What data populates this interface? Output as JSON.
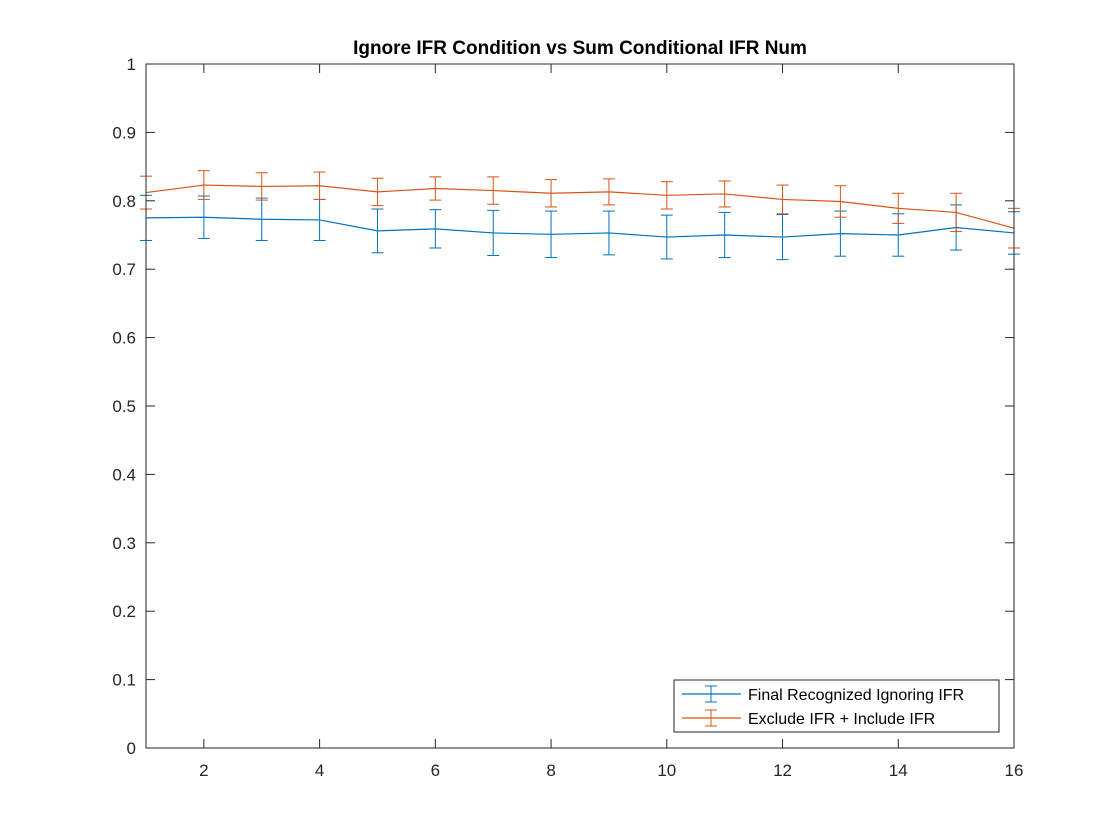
{
  "chart_data": {
    "type": "line",
    "title": "Ignore IFR Condition vs Sum Conditional IFR Num",
    "xlabel": "",
    "ylabel": "",
    "xlim": [
      1,
      16
    ],
    "ylim": [
      0,
      1
    ],
    "xticks": [
      2,
      4,
      6,
      8,
      10,
      12,
      14,
      16
    ],
    "yticks": [
      0,
      0.1,
      0.2,
      0.3,
      0.4,
      0.5,
      0.6,
      0.7,
      0.8,
      0.9,
      1
    ],
    "ytick_labels": [
      "0",
      "0.1",
      "0.2",
      "0.3",
      "0.4",
      "0.5",
      "0.6",
      "0.7",
      "0.8",
      "0.9",
      "1"
    ],
    "grid": false,
    "legend_position": "bottom-right",
    "x": [
      1,
      2,
      3,
      4,
      5,
      6,
      7,
      8,
      9,
      10,
      11,
      12,
      13,
      14,
      15,
      16
    ],
    "series": [
      {
        "name": "Final Recognized Ignoring IFR",
        "color": "#0072BD",
        "values": [
          0.775,
          0.776,
          0.773,
          0.772,
          0.756,
          0.759,
          0.753,
          0.751,
          0.753,
          0.747,
          0.75,
          0.747,
          0.752,
          0.75,
          0.761,
          0.753
        ],
        "errors": [
          0.033,
          0.031,
          0.031,
          0.03,
          0.032,
          0.028,
          0.033,
          0.034,
          0.032,
          0.032,
          0.033,
          0.033,
          0.033,
          0.031,
          0.033,
          0.031
        ]
      },
      {
        "name": "Exclude IFR + Include IFR",
        "color": "#D95319",
        "values": [
          0.812,
          0.823,
          0.821,
          0.822,
          0.813,
          0.818,
          0.815,
          0.811,
          0.813,
          0.808,
          0.81,
          0.802,
          0.799,
          0.789,
          0.783,
          0.76
        ],
        "errors": [
          0.024,
          0.021,
          0.02,
          0.02,
          0.02,
          0.017,
          0.02,
          0.02,
          0.019,
          0.02,
          0.019,
          0.021,
          0.023,
          0.022,
          0.028,
          0.029
        ]
      }
    ]
  }
}
